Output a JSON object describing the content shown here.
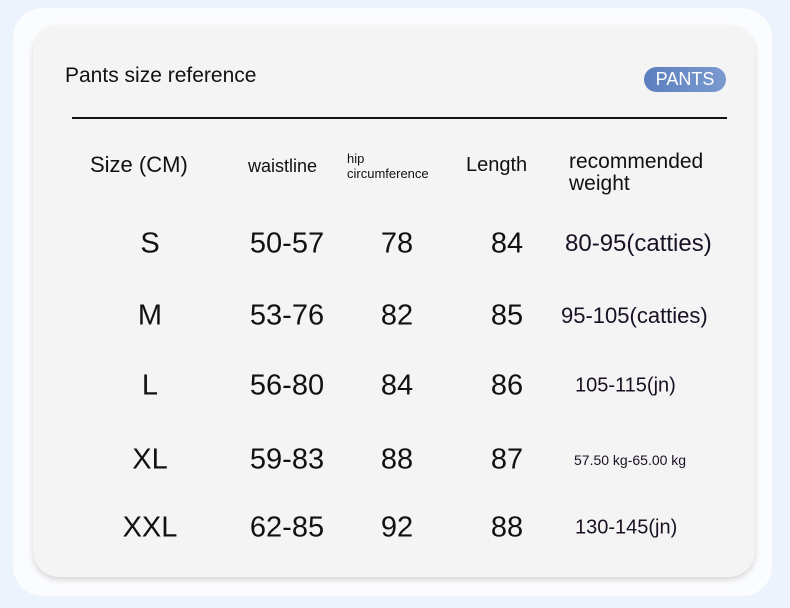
{
  "title": "Pants size reference",
  "badge": "PANTS",
  "colors": {
    "background": "#edf3fc",
    "card": "#f4f4f4",
    "badge": "#6a8cc7"
  },
  "headers": [
    "Size (CM)",
    "waistline",
    "hip",
    "circumference",
    "Length",
    "recommended",
    "weight"
  ],
  "rows": [
    {
      "size": "S",
      "waist": "50-57",
      "hip": "78",
      "length": "84",
      "weight": "80-95(catties)"
    },
    {
      "size": "M",
      "waist": "53-76",
      "hip": "82",
      "length": "85",
      "weight": "95-105(catties)"
    },
    {
      "size": "L",
      "waist": "56-80",
      "hip": "84",
      "length": "86",
      "weight": "105-115(jn)"
    },
    {
      "size": "XL",
      "waist": "59-83",
      "hip": "88",
      "length": "87",
      "weight": "57.50 kg-65.00 kg"
    },
    {
      "size": "XXL",
      "waist": "62-85",
      "hip": "92",
      "length": "88",
      "weight": "130-145(jn)"
    }
  ]
}
